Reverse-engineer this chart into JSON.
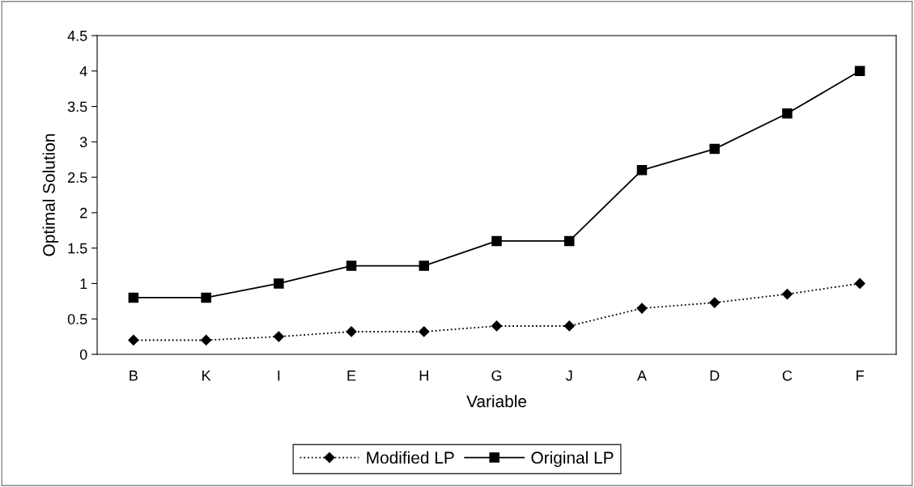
{
  "chart_data": {
    "type": "line",
    "xlabel": "Variable",
    "ylabel": "Optimal Solution",
    "categories": [
      "B",
      "K",
      "I",
      "E",
      "H",
      "G",
      "J",
      "A",
      "D",
      "C",
      "F"
    ],
    "series": [
      {
        "name": "Modified LP",
        "color": "#000000",
        "marker": "diamond",
        "line_style": "dotted",
        "values": [
          0.2,
          0.2,
          0.25,
          0.32,
          0.32,
          0.4,
          0.4,
          0.65,
          0.73,
          0.85,
          1.0
        ]
      },
      {
        "name": "Original LP",
        "color": "#000000",
        "marker": "square",
        "line_style": "solid",
        "values": [
          0.8,
          0.8,
          1.0,
          1.25,
          1.25,
          1.6,
          1.6,
          2.6,
          2.9,
          3.4,
          4.0
        ]
      }
    ],
    "ylim": [
      0,
      4.5
    ],
    "yticks": [
      0,
      {
        "value": 0.5,
        "label": "0.5"
      },
      1,
      {
        "value": 1.5,
        "label": "1.5"
      },
      2,
      {
        "value": 2.5,
        "label": "2.5"
      },
      3,
      {
        "value": 3.5,
        "label": "3.5"
      },
      4,
      {
        "value": 4.5,
        "label": "4.5"
      }
    ],
    "grid": false,
    "legend": "bottom"
  }
}
